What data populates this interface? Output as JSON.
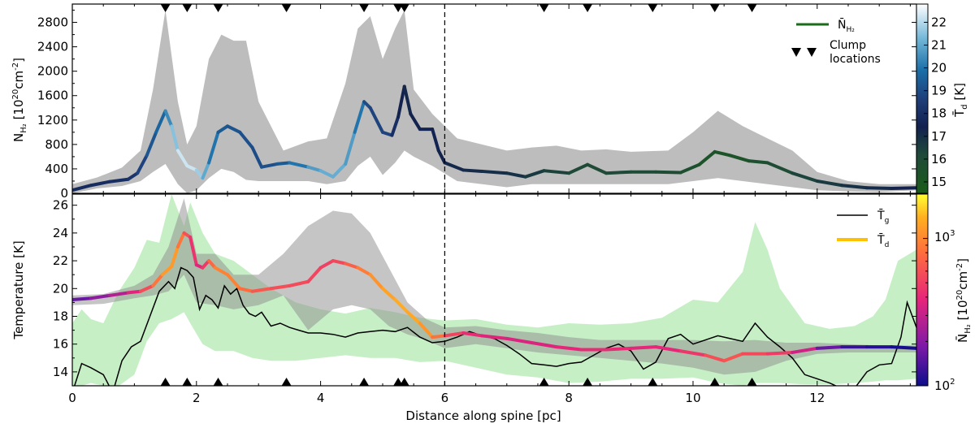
{
  "chart_data": [
    {
      "type": "line",
      "panel": "top",
      "xlabel": "",
      "ylabel_main": "N",
      "ylabel_sub": "H₂",
      "ylabel_rest": " [10",
      "ylabel_exp": "20",
      "ylabel_unit": "cm",
      "ylabel_unit_exp": "-2",
      "ylabel_close": "]",
      "xlim": [
        0,
        13.6
      ],
      "ylim": [
        0,
        3100
      ],
      "yticks": [
        "0",
        "400",
        "800",
        "1200",
        "1600",
        "2000",
        "2400",
        "2800"
      ],
      "ytick_values": [
        0,
        400,
        800,
        1200,
        1600,
        2000,
        2400,
        2800
      ],
      "vline_x": 6,
      "clump_x": [
        1.5,
        1.85,
        2.35,
        3.45,
        4.7,
        5.25,
        5.35,
        7.6,
        8.3,
        9.35,
        10.35,
        10.95
      ],
      "band": {
        "x": [
          0,
          0.4,
          0.8,
          1.1,
          1.3,
          1.5,
          1.7,
          1.85,
          2.0,
          2.2,
          2.4,
          2.6,
          2.8,
          3.0,
          3.4,
          3.8,
          4.1,
          4.4,
          4.6,
          4.8,
          5.0,
          5.2,
          5.35,
          5.5,
          5.8,
          6.2,
          6.6,
          7.0,
          7.4,
          7.8,
          8.2,
          8.6,
          9.0,
          9.6,
          10.0,
          10.4,
          10.8,
          11.2,
          11.6,
          12.0,
          12.5,
          13.0,
          13.6
        ],
        "upper": [
          150,
          260,
          420,
          700,
          1700,
          3000,
          1500,
          800,
          1100,
          2200,
          2600,
          2500,
          2500,
          1500,
          700,
          850,
          900,
          1800,
          2700,
          2900,
          2200,
          2700,
          3000,
          1700,
          1300,
          900,
          800,
          700,
          750,
          780,
          700,
          720,
          680,
          700,
          1000,
          1350,
          1100,
          900,
          700,
          350,
          200,
          150,
          150
        ],
        "lower": [
          0,
          80,
          120,
          200,
          350,
          480,
          150,
          0,
          50,
          250,
          400,
          350,
          220,
          200,
          200,
          200,
          150,
          200,
          450,
          600,
          300,
          500,
          700,
          600,
          450,
          200,
          150,
          100,
          150,
          150,
          150,
          150,
          150,
          150,
          200,
          250,
          200,
          150,
          100,
          50,
          30,
          20,
          50
        ]
      },
      "series": [
        {
          "name": "N̄",
          "name_sub": "H₂",
          "x": [
            0,
            0.3,
            0.6,
            0.9,
            1.05,
            1.2,
            1.35,
            1.5,
            1.6,
            1.7,
            1.85,
            2.0,
            2.1,
            2.2,
            2.35,
            2.5,
            2.7,
            2.9,
            3.05,
            3.3,
            3.5,
            3.8,
            4.0,
            4.2,
            4.4,
            4.55,
            4.7,
            4.8,
            5.0,
            5.15,
            5.25,
            5.35,
            5.45,
            5.6,
            5.8,
            5.9,
            6.0,
            6.3,
            6.6,
            7.0,
            7.3,
            7.6,
            8.0,
            8.3,
            8.6,
            9.0,
            9.4,
            9.8,
            10.1,
            10.35,
            10.6,
            10.9,
            11.2,
            11.6,
            12.0,
            12.4,
            12.8,
            13.2,
            13.6
          ],
          "values": [
            50,
            130,
            190,
            230,
            330,
            620,
            1000,
            1350,
            1100,
            700,
            450,
            380,
            250,
            500,
            1000,
            1100,
            1000,
            750,
            430,
            480,
            500,
            430,
            370,
            270,
            480,
            1000,
            1500,
            1400,
            1000,
            950,
            1250,
            1750,
            1300,
            1050,
            1050,
            700,
            500,
            380,
            360,
            330,
            270,
            370,
            330,
            470,
            330,
            350,
            350,
            340,
            470,
            680,
            620,
            530,
            500,
            330,
            200,
            130,
            90,
            80,
            90
          ],
          "td": [
            17.8,
            17.8,
            18,
            18,
            18.5,
            19,
            19.5,
            19.8,
            21,
            22,
            22.5,
            22,
            21.5,
            20.5,
            19.5,
            19.2,
            19.2,
            19,
            19,
            19.2,
            19.5,
            20.5,
            21,
            21.2,
            21,
            20.5,
            19.5,
            18.5,
            19,
            18.5,
            17.5,
            17.2,
            17.2,
            17.5,
            17.5,
            17.5,
            17.2,
            17.2,
            17,
            17,
            16.8,
            16.5,
            16.3,
            16,
            16.2,
            16.2,
            16,
            15.8,
            15.5,
            15.2,
            15.2,
            15.5,
            15.8,
            16.2,
            16.5,
            16.8,
            17,
            17.2,
            17.5
          ]
        }
      ],
      "legend": {
        "line_label": "N̄",
        "line_label_sub": "H₂",
        "clump_label_1": "Clump",
        "clump_label_2": "locations"
      },
      "colorbar": {
        "label_main": "T̄",
        "label_sub": "d",
        "label_unit": " [K]",
        "range": [
          14.5,
          22.8
        ],
        "ticks": [
          15,
          16,
          17,
          18,
          19,
          20,
          21,
          22
        ],
        "tick_labels": [
          "15",
          "16",
          "17",
          "18",
          "19",
          "20",
          "21",
          "22"
        ]
      }
    },
    {
      "type": "line",
      "panel": "bottom",
      "xlabel": "Distance along spine [pc]",
      "ylabel": "Temperature [K]",
      "xlim": [
        0,
        13.6
      ],
      "ylim": [
        13,
        26.8
      ],
      "xticks": [
        0,
        2,
        4,
        6,
        8,
        10,
        12
      ],
      "xtick_labels": [
        "0",
        "2",
        "4",
        "6",
        "8",
        "10",
        "12"
      ],
      "yticks": [
        14,
        16,
        18,
        20,
        22,
        24,
        26
      ],
      "ytick_labels": [
        "14",
        "16",
        "18",
        "20",
        "22",
        "24",
        "26"
      ],
      "vline_x": 6,
      "clump_x": [
        1.5,
        1.85,
        2.35,
        3.45,
        4.7,
        5.25,
        5.35,
        7.6,
        8.3,
        9.35,
        10.35,
        10.95
      ],
      "gray_band": {
        "x": [
          0,
          0.5,
          1.0,
          1.3,
          1.55,
          1.8,
          2.0,
          2.3,
          2.6,
          3.0,
          3.4,
          3.8,
          4.2,
          4.5,
          4.8,
          5.1,
          5.4,
          5.7,
          6.0,
          6.5,
          7.0,
          7.5,
          8.0,
          8.5,
          9.0,
          9.5,
          10.0,
          10.5,
          11.0,
          11.5,
          12.0,
          12.5,
          13.0,
          13.6
        ],
        "upper": [
          19.5,
          19.6,
          20.2,
          21,
          23,
          26.5,
          22.5,
          22.5,
          21,
          21,
          22.5,
          24.5,
          25.6,
          25.4,
          24,
          21.5,
          19,
          17.8,
          17.2,
          17.3,
          17,
          16.8,
          16.5,
          16.3,
          16.3,
          16.3,
          16.3,
          16.2,
          16.3,
          16.1,
          16.1,
          16.0,
          15.9,
          15.9
        ],
        "lower": [
          18.8,
          18.9,
          19.3,
          19.5,
          19.8,
          21,
          19,
          18.8,
          18.5,
          18.8,
          19.5,
          17,
          18.5,
          18.8,
          18.5,
          17.3,
          16.7,
          16.3,
          15.7,
          16,
          15.7,
          15.4,
          15.2,
          15,
          14.8,
          14.6,
          14.3,
          13.8,
          14,
          14.8,
          15.3,
          15.4,
          15.4,
          15.4
        ]
      },
      "green_band": {
        "x": [
          0,
          0.15,
          0.3,
          0.5,
          0.75,
          1.0,
          1.2,
          1.4,
          1.6,
          1.8,
          1.9,
          2.1,
          2.3,
          2.6,
          2.9,
          3.2,
          3.6,
          4.0,
          4.4,
          4.8,
          5.2,
          5.6,
          6.0,
          6.5,
          7.0,
          7.5,
          8.0,
          8.5,
          9.0,
          9.5,
          10.0,
          10.4,
          10.8,
          11.0,
          11.2,
          11.4,
          11.8,
          12.2,
          12.6,
          12.9,
          13.1,
          13.3,
          13.6
        ],
        "upper": [
          17.5,
          18.5,
          17.8,
          17.5,
          19.8,
          21.5,
          23.5,
          23.3,
          26.8,
          24.5,
          26.2,
          24,
          22.5,
          22,
          21,
          20,
          19,
          18.5,
          18.2,
          18.6,
          18.3,
          17.9,
          17.7,
          17.8,
          17.4,
          17.2,
          17.5,
          17.4,
          17.5,
          17.9,
          19.2,
          19,
          21.2,
          24.8,
          22.8,
          20,
          17.5,
          17.1,
          17.3,
          18,
          19.2,
          22,
          22.8
        ],
        "lower": [
          13,
          13,
          13.2,
          13,
          13,
          13.8,
          16.2,
          17.5,
          17.8,
          18.3,
          17.5,
          16,
          15.5,
          15.5,
          15,
          14.8,
          14.8,
          15,
          15.2,
          15,
          15,
          14.7,
          14.8,
          14.3,
          13.8,
          13.6,
          13.2,
          13.3,
          13.5,
          13.5,
          13.6,
          13.2,
          13,
          13.2,
          13.2,
          13.2,
          13.1,
          13.1,
          13.2,
          13.3,
          13.4,
          13.4,
          13.5
        ]
      },
      "series": [
        {
          "name": "T̄",
          "name_sub": "g",
          "x": [
            0,
            0.15,
            0.3,
            0.5,
            0.65,
            0.8,
            0.95,
            1.1,
            1.25,
            1.4,
            1.55,
            1.65,
            1.75,
            1.85,
            1.95,
            2.05,
            2.15,
            2.25,
            2.35,
            2.45,
            2.55,
            2.65,
            2.75,
            2.85,
            2.95,
            3.05,
            3.2,
            3.35,
            3.5,
            3.65,
            3.8,
            4.0,
            4.2,
            4.4,
            4.6,
            4.8,
            5.0,
            5.2,
            5.4,
            5.6,
            5.8,
            6.0,
            6.2,
            6.4,
            6.6,
            6.8,
            7.0,
            7.2,
            7.4,
            7.6,
            7.8,
            8.0,
            8.2,
            8.4,
            8.6,
            8.8,
            9.0,
            9.2,
            9.4,
            9.6,
            9.8,
            10.0,
            10.2,
            10.4,
            10.6,
            10.8,
            11.0,
            11.2,
            11.4,
            11.6,
            11.8,
            12.0,
            12.2,
            12.4,
            12.6,
            12.8,
            13.0,
            13.2,
            13.35,
            13.45,
            13.6
          ],
          "values": [
            12.5,
            14.6,
            14.3,
            13.8,
            12.5,
            14.8,
            15.8,
            16.2,
            18.0,
            19.8,
            20.5,
            20.0,
            21.5,
            21.3,
            20.8,
            18.5,
            19.5,
            19.2,
            18.6,
            20.2,
            19.6,
            20.0,
            18.8,
            18.2,
            18.0,
            18.3,
            17.3,
            17.5,
            17.2,
            17.0,
            16.8,
            16.8,
            16.7,
            16.5,
            16.8,
            16.9,
            17.0,
            16.9,
            17.2,
            16.5,
            16.1,
            16.2,
            16.5,
            16.9,
            16.6,
            16.4,
            15.9,
            15.3,
            14.6,
            14.5,
            14.4,
            14.6,
            14.7,
            15.2,
            15.7,
            16.0,
            15.5,
            14.2,
            14.7,
            16.4,
            16.7,
            16.0,
            16.3,
            16.6,
            16.4,
            16.2,
            17.5,
            16.5,
            15.8,
            15.0,
            13.8,
            13.5,
            13.2,
            12.8,
            12.8,
            14.0,
            14.5,
            14.6,
            16.5,
            19.0,
            17.2
          ]
        },
        {
          "name": "T̄",
          "name_sub": "d",
          "x": [
            0,
            0.3,
            0.6,
            0.9,
            1.1,
            1.3,
            1.45,
            1.6,
            1.7,
            1.8,
            1.9,
            2.0,
            2.1,
            2.2,
            2.3,
            2.5,
            2.7,
            2.9,
            3.2,
            3.5,
            3.8,
            4.0,
            4.2,
            4.4,
            4.6,
            4.8,
            5.0,
            5.2,
            5.4,
            5.6,
            5.8,
            6.0,
            6.3,
            6.6,
            7.0,
            7.4,
            7.8,
            8.2,
            8.6,
            9.0,
            9.4,
            9.8,
            10.2,
            10.5,
            10.8,
            11.2,
            11.6,
            12.0,
            12.4,
            12.8,
            13.2,
            13.6
          ],
          "values": [
            19.2,
            19.3,
            19.5,
            19.7,
            19.8,
            20.2,
            21.0,
            21.6,
            23.0,
            24.0,
            23.7,
            21.7,
            21.5,
            22.0,
            21.5,
            21.0,
            20.0,
            19.8,
            20.0,
            20.2,
            20.5,
            21.5,
            22.0,
            21.8,
            21.5,
            21.0,
            20.0,
            19.2,
            18.3,
            17.5,
            16.5,
            16.6,
            16.8,
            16.6,
            16.4,
            16.1,
            15.8,
            15.6,
            15.6,
            15.7,
            15.8,
            15.5,
            15.2,
            14.8,
            15.3,
            15.3,
            15.4,
            15.7,
            15.8,
            15.8,
            15.8,
            15.7
          ],
          "nh2": [
            150,
            180,
            240,
            300,
            450,
            700,
            1000,
            1300,
            1000,
            700,
            500,
            400,
            350,
            600,
            900,
            1000,
            900,
            700,
            600,
            580,
            550,
            520,
            500,
            600,
            800,
            1000,
            1200,
            1300,
            1400,
            1200,
            1050,
            600,
            450,
            380,
            360,
            350,
            370,
            400,
            420,
            400,
            380,
            400,
            520,
            650,
            600,
            520,
            450,
            200,
            130,
            120,
            110,
            100
          ]
        }
      ],
      "legend": {
        "tg_label": "T̄",
        "tg_sub": "g",
        "td_label": "T̄",
        "td_sub": "d"
      },
      "colorbar": {
        "label_main": "N̄",
        "label_sub": "H₂",
        "label_unit": " [10",
        "label_exp": "20",
        "label_unit2": "cm",
        "label_unit2_exp": "-2",
        "label_close": "]",
        "scale": "log",
        "range": [
          100,
          2000
        ],
        "tick_base_1": "10",
        "tick_exp_1": "2",
        "tick_base_2": "10",
        "tick_exp_2": "3"
      }
    }
  ],
  "colors": {
    "band_gray": "#bdbdbd",
    "band_green": "#a8e6a8",
    "tg_line": "#000000",
    "legend_green": "#1a6b1a",
    "legend_td": "#ffc000",
    "vline": "#000000"
  }
}
